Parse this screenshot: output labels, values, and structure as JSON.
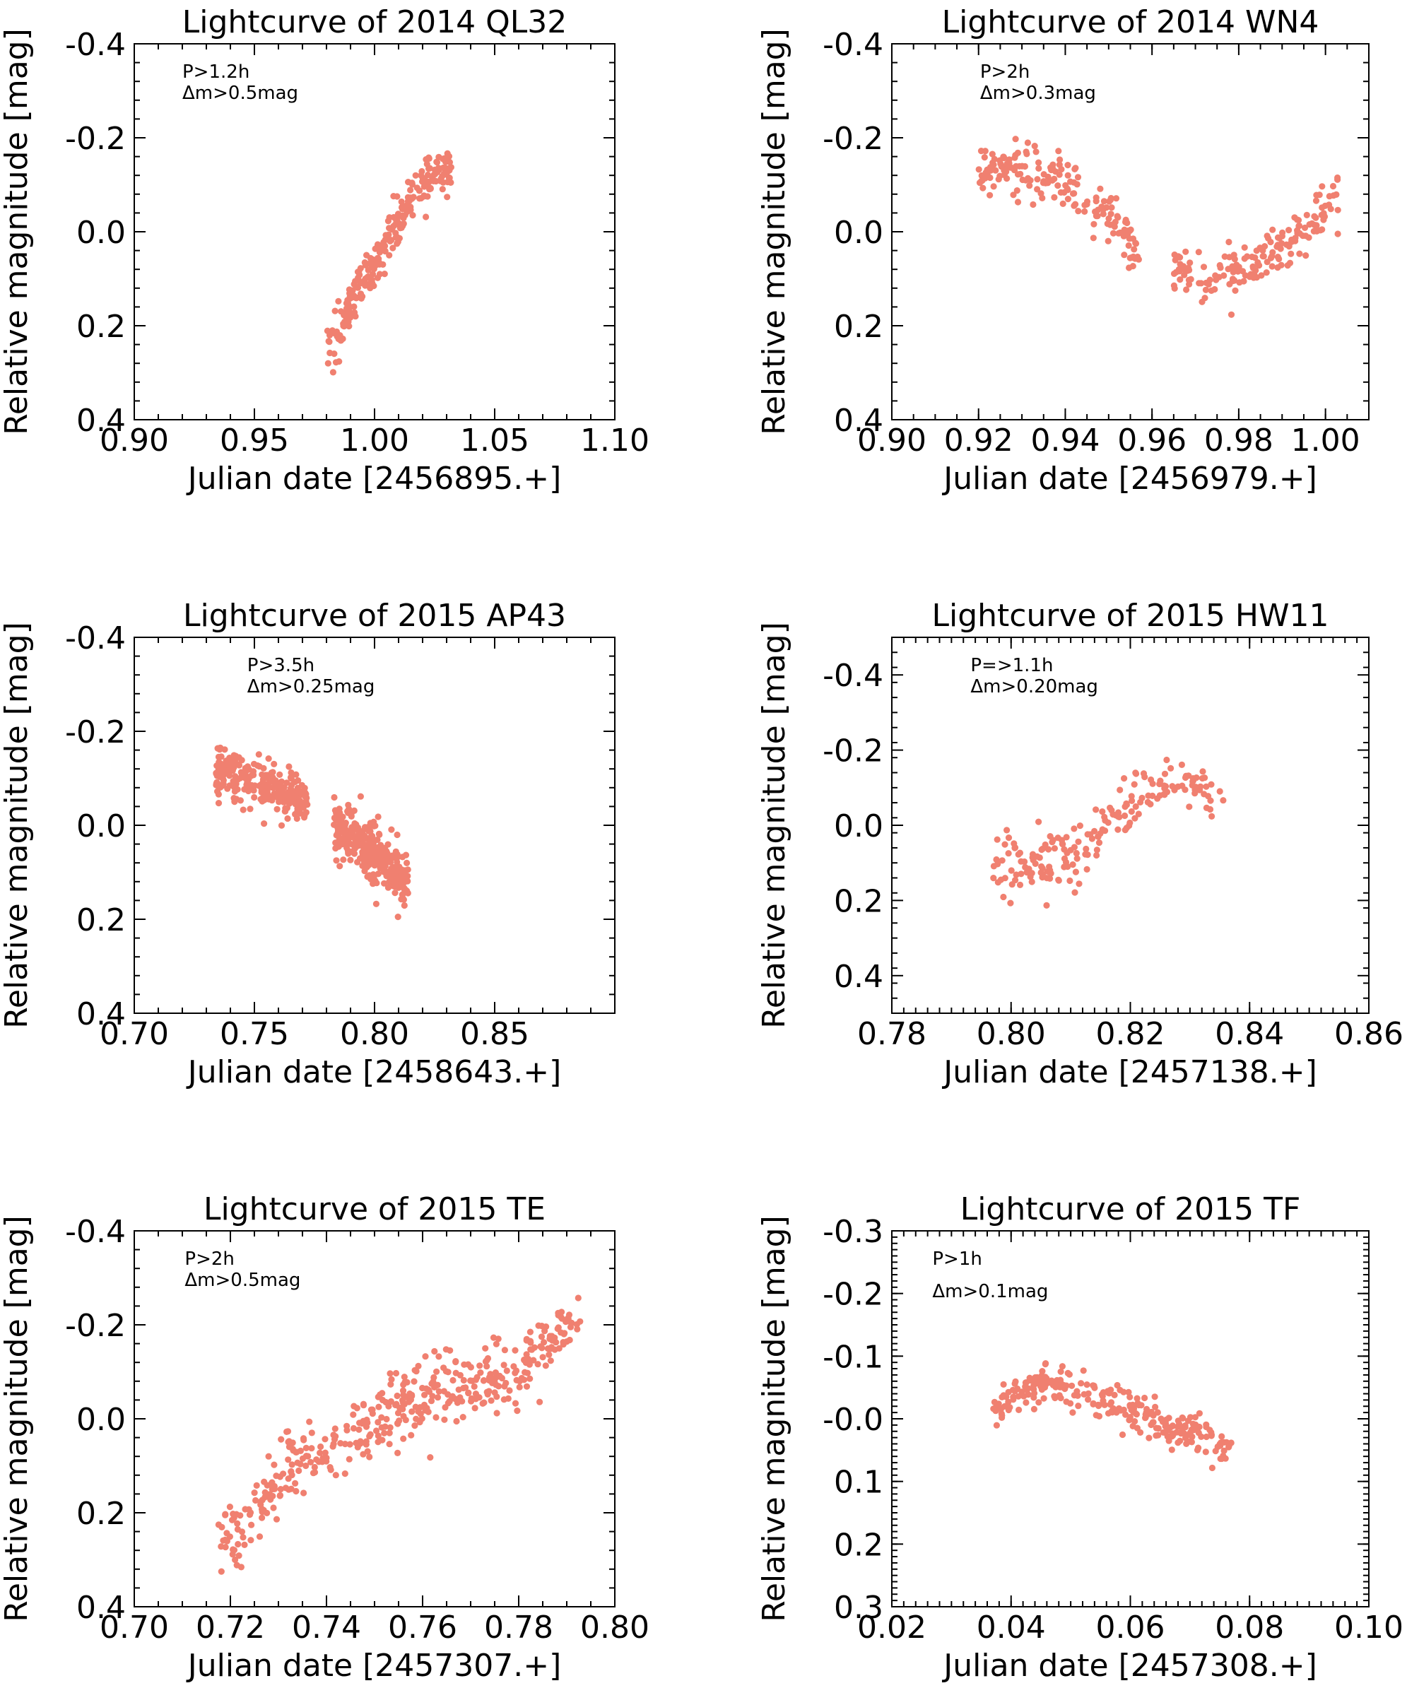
{
  "marker_color": "#F08070",
  "chart_data": [
    {
      "type": "scatter",
      "title": "Lightcurve of 2014 QL32",
      "xlabel": "Julian date [2456895.+]",
      "ylabel": "Relative magnitude [mag]",
      "xlim": [
        0.9,
        1.1
      ],
      "ylim": [
        0.4,
        -0.4
      ],
      "xticks": [
        0.9,
        0.95,
        1.0,
        1.05,
        1.1
      ],
      "xtick_labels": [
        "0.90",
        "0.95",
        "1.00",
        "1.05",
        "1.10"
      ],
      "yticks": [
        -0.4,
        -0.2,
        0.0,
        0.2,
        0.4
      ],
      "ytick_labels": [
        "-0.4",
        "-0.2",
        "0.0",
        "0.2",
        "0.4"
      ],
      "x_minor": 0.01,
      "y_minor": 0.04,
      "annotations": [
        "P>1.2h",
        "Δm>0.5mag"
      ],
      "series": [
        {
          "profile": [
            [
              0.98,
              0.26
            ],
            [
              0.99,
              0.16
            ],
            [
              1.0,
              0.06
            ],
            [
              1.01,
              -0.03
            ],
            [
              1.02,
              -0.09
            ],
            [
              1.032,
              -0.15
            ]
          ],
          "noise": 0.025,
          "n": 260
        }
      ]
    },
    {
      "type": "scatter",
      "title": "Lightcurve of 2014 WN4",
      "xlabel": "Julian date [2456979.+]",
      "ylabel": "Relative magnitude [mag]",
      "xlim": [
        0.9,
        1.01
      ],
      "ylim": [
        0.4,
        -0.4
      ],
      "xticks": [
        0.9,
        0.92,
        0.94,
        0.96,
        0.98,
        1.0
      ],
      "xtick_labels": [
        "0.90",
        "0.92",
        "0.94",
        "0.96",
        "0.98",
        "1.00"
      ],
      "yticks": [
        -0.4,
        -0.2,
        0.0,
        0.2,
        0.4
      ],
      "ytick_labels": [
        "-0.4",
        "-0.2",
        "0.0",
        "0.2",
        "0.4"
      ],
      "x_minor": 0.005,
      "y_minor": 0.04,
      "annotations": [
        "P>2h",
        "Δm>0.3mag"
      ],
      "series": [
        {
          "profile": [
            [
              0.92,
              -0.14
            ],
            [
              0.93,
              -0.13
            ],
            [
              0.94,
              -0.1
            ],
            [
              0.95,
              -0.04
            ],
            [
              0.957,
              0.05
            ]
          ],
          "noise": 0.025,
          "n": 180
        },
        {
          "profile": [
            [
              0.965,
              0.07
            ],
            [
              0.972,
              0.1
            ],
            [
              0.98,
              0.08
            ],
            [
              0.99,
              0.03
            ],
            [
              1.003,
              -0.07
            ]
          ],
          "noise": 0.025,
          "n": 170
        }
      ]
    },
    {
      "type": "scatter",
      "title": "Lightcurve of 2015 AP43",
      "xlabel": "Julian date [2458643.+]",
      "ylabel": "Relative magnitude [mag]",
      "xlim": [
        0.7,
        0.9
      ],
      "ylim": [
        0.4,
        -0.4
      ],
      "xticks": [
        0.7,
        0.75,
        0.8,
        0.85
      ],
      "xtick_labels": [
        "0.70",
        "0.75",
        "0.80",
        "0.85"
      ],
      "yticks": [
        -0.4,
        -0.2,
        0.0,
        0.2,
        0.4
      ],
      "ytick_labels": [
        "-0.4",
        "-0.2",
        "0.0",
        "0.2",
        "0.4"
      ],
      "x_minor": 0.01,
      "y_minor": 0.04,
      "annotations": [
        "P>3.5h",
        "Δm>0.25mag"
      ],
      "series": [
        {
          "profile": [
            [
              0.734,
              -0.11
            ],
            [
              0.745,
              -0.1
            ],
            [
              0.755,
              -0.08
            ],
            [
              0.765,
              -0.06
            ],
            [
              0.772,
              -0.04
            ]
          ],
          "noise": 0.025,
          "n": 260
        },
        {
          "profile": [
            [
              0.783,
              0.0
            ],
            [
              0.79,
              0.02
            ],
            [
              0.8,
              0.06
            ],
            [
              0.81,
              0.11
            ],
            [
              0.814,
              0.13
            ]
          ],
          "noise": 0.03,
          "n": 330
        }
      ]
    },
    {
      "type": "scatter",
      "title": "Lightcurve of 2015 HW11",
      "xlabel": "Julian date [2457138.+]",
      "ylabel": "Relative magnitude [mag]",
      "xlim": [
        0.78,
        0.86
      ],
      "ylim": [
        0.5,
        -0.5
      ],
      "xticks": [
        0.78,
        0.8,
        0.82,
        0.84,
        0.86
      ],
      "xtick_labels": [
        "0.78",
        "0.80",
        "0.82",
        "0.84",
        "0.86"
      ],
      "yticks": [
        -0.4,
        -0.2,
        0.0,
        0.2,
        0.4
      ],
      "ytick_labels": [
        "-0.4",
        "-0.2",
        "0.0",
        "0.2",
        "0.4"
      ],
      "x_minor": 0.002,
      "y_minor": 0.04,
      "annotations": [
        "P=>1.1h",
        "Δm>0.20mag"
      ],
      "series": [
        {
          "profile": [
            [
              0.797,
              0.1
            ],
            [
              0.805,
              0.1
            ],
            [
              0.81,
              0.08
            ],
            [
              0.815,
              0.02
            ],
            [
              0.82,
              -0.06
            ],
            [
              0.826,
              -0.11
            ],
            [
              0.836,
              -0.08
            ]
          ],
          "noise": 0.04,
          "n": 190
        }
      ]
    },
    {
      "type": "scatter",
      "title": "Lightcurve of 2015 TE",
      "xlabel": "Julian date [2457307.+]",
      "ylabel": "Relative magnitude [mag]",
      "xlim": [
        0.7,
        0.8
      ],
      "ylim": [
        0.4,
        -0.4
      ],
      "xticks": [
        0.7,
        0.72,
        0.74,
        0.76,
        0.78,
        0.8
      ],
      "xtick_labels": [
        "0.70",
        "0.72",
        "0.74",
        "0.76",
        "0.78",
        "0.80"
      ],
      "yticks": [
        -0.4,
        -0.2,
        0.0,
        0.2,
        0.4
      ],
      "ytick_labels": [
        "-0.4",
        "-0.2",
        "0.0",
        "0.2",
        "0.4"
      ],
      "x_minor": 0.005,
      "y_minor": 0.04,
      "annotations": [
        "P>2h",
        "Δm>0.5mag"
      ],
      "series": [
        {
          "profile": [
            [
              0.717,
              0.28
            ],
            [
              0.725,
              0.2
            ],
            [
              0.732,
              0.1
            ],
            [
              0.74,
              0.07
            ],
            [
              0.75,
              0.0
            ],
            [
              0.76,
              -0.05
            ],
            [
              0.77,
              -0.08
            ],
            [
              0.78,
              -0.1
            ],
            [
              0.786,
              -0.16
            ],
            [
              0.793,
              -0.21
            ]
          ],
          "noise": 0.035,
          "n": 430
        }
      ]
    },
    {
      "type": "scatter",
      "title": "Lightcurve of 2015 TF",
      "xlabel": "Julian date [2457308.+]",
      "ylabel": "Relative magnitude [mag]",
      "xlim": [
        0.02,
        0.1
      ],
      "ylim": [
        0.3,
        -0.3
      ],
      "xticks": [
        0.02,
        0.04,
        0.06,
        0.08,
        0.1
      ],
      "xtick_labels": [
        "0.02",
        "0.04",
        "0.06",
        "0.08",
        "0.10"
      ],
      "yticks": [
        -0.3,
        -0.2,
        -0.1,
        0.0,
        0.1,
        0.2,
        0.3
      ],
      "ytick_labels": [
        "-0.3",
        "-0.2",
        "-0.1",
        "-0.0",
        "0.1",
        "0.2",
        "0.3"
      ],
      "x_minor": 0.002,
      "y_minor": 0.01,
      "annotations": [
        "P>1h",
        "Δm>0.1mag"
      ],
      "series": [
        {
          "profile": [
            [
              0.037,
              -0.02
            ],
            [
              0.045,
              -0.06
            ],
            [
              0.052,
              -0.04
            ],
            [
              0.06,
              -0.02
            ],
            [
              0.067,
              0.02
            ],
            [
              0.072,
              0.02
            ],
            [
              0.078,
              0.07
            ]
          ],
          "noise": 0.015,
          "n": 270
        }
      ]
    }
  ]
}
